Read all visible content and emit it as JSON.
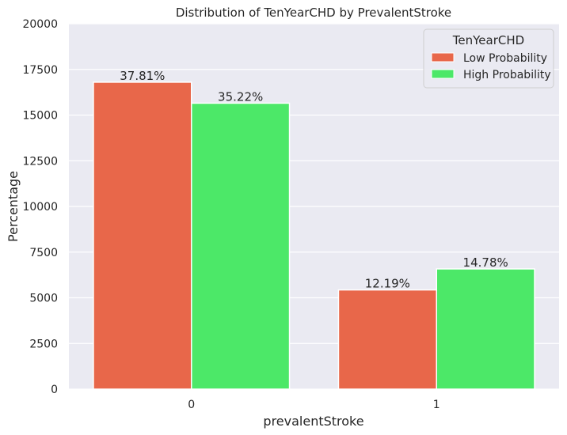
{
  "chart_data": {
    "type": "bar",
    "title": "Distribution of TenYearCHD by PrevalentStroke",
    "xlabel": "prevalentStroke",
    "ylabel": "Percentage",
    "categories": [
      "0",
      "1"
    ],
    "ylim": [
      0,
      20000
    ],
    "yticks": [
      "0",
      "2500",
      "5000",
      "7500",
      "10000",
      "12500",
      "15000",
      "17500",
      "20000"
    ],
    "grid": true,
    "legend": {
      "title": "TenYearCHD",
      "placement": "top-right"
    },
    "series": [
      {
        "name": "Low Probability",
        "color": "#E8674A",
        "values": [
          16800,
          5430
        ],
        "labels": [
          "37.81%",
          "12.19%"
        ]
      },
      {
        "name": "High Probability",
        "color": "#4CE868",
        "values": [
          15650,
          6580
        ],
        "labels": [
          "35.22%",
          "14.78%"
        ]
      }
    ]
  }
}
